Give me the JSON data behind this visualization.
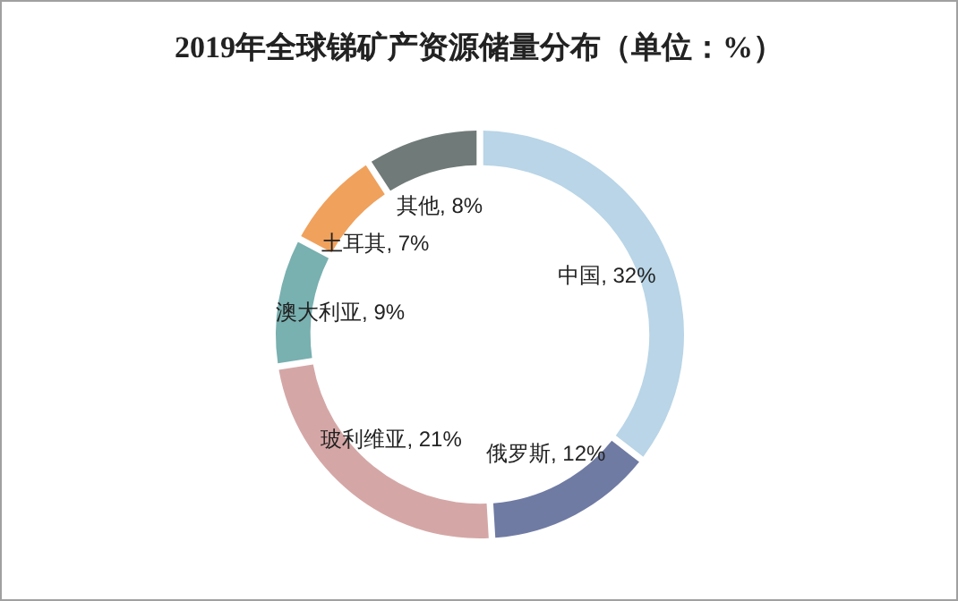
{
  "chart_data": {
    "type": "donut",
    "title": "2019年全球锑矿产资源储量分布（单位：%）",
    "categories": [
      "中国",
      "俄罗斯",
      "玻利维亚",
      "澳大利亚",
      "土耳其",
      "其他"
    ],
    "values": [
      32,
      12,
      21,
      9,
      7,
      8
    ],
    "value_labels": [
      "32%",
      "12%",
      "21%",
      "9%",
      "7%",
      "8%"
    ],
    "colors": [
      "#b9d5e7",
      "#6f7ba3",
      "#d4a7a6",
      "#79b0b0",
      "#f0a15c",
      "#707a78"
    ]
  }
}
